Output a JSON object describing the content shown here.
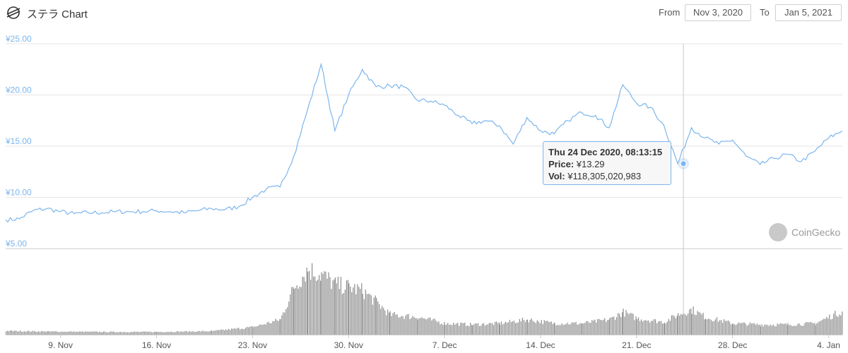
{
  "header": {
    "title": "ステラ Chart",
    "from_label": "From",
    "from_value": "Nov 3, 2020",
    "to_label": "To",
    "to_value": "Jan 5, 2021"
  },
  "tooltip": {
    "date": "Thu 24 Dec 2020, 08:13:15",
    "price_label": "Price:",
    "price_value": "¥13.29",
    "vol_label": "Vol:",
    "vol_value": "¥118,305,020,983"
  },
  "credit": "CoinGecko",
  "colors": {
    "line": "#7cb5ec",
    "volume": "#8c8c8c",
    "grid": "#e6e6e6",
    "axis_text": "#7cb5ec"
  },
  "chart_data": {
    "type": "line",
    "title": "ステラ Chart",
    "y_ticks": [
      "¥25.00",
      "¥20.00",
      "¥15.00",
      "¥10.00",
      "¥5.00"
    ],
    "y_tick_values": [
      25,
      20,
      15,
      10,
      5
    ],
    "ylim": [
      5,
      25
    ],
    "x_ticks": [
      "9. Nov",
      "16. Nov",
      "23. Nov",
      "30. Nov",
      "7. Dec",
      "14. Dec",
      "21. Dec",
      "28. Dec",
      "4. Jan"
    ],
    "x_tick_dates": [
      "2020-11-09",
      "2020-11-16",
      "2020-11-23",
      "2020-11-30",
      "2020-12-07",
      "2020-12-14",
      "2020-12-21",
      "2020-12-28",
      "2021-01-04"
    ],
    "xlim": [
      "2020-11-05",
      "2021-01-05"
    ],
    "series": [
      {
        "values": [
          [
            "2020-11-05",
            7.8
          ],
          [
            "2020-11-06",
            7.9
          ],
          [
            "2020-11-07",
            8.7
          ],
          [
            "2020-11-08",
            8.9
          ],
          [
            "2020-11-09",
            8.6
          ],
          [
            "2020-11-10",
            8.4
          ],
          [
            "2020-11-11",
            8.5
          ],
          [
            "2020-11-12",
            8.5
          ],
          [
            "2020-11-13",
            8.6
          ],
          [
            "2020-11-14",
            8.6
          ],
          [
            "2020-11-15",
            8.6
          ],
          [
            "2020-11-16",
            8.7
          ],
          [
            "2020-11-17",
            8.6
          ],
          [
            "2020-11-18",
            8.5
          ],
          [
            "2020-11-19",
            8.7
          ],
          [
            "2020-11-20",
            8.9
          ],
          [
            "2020-11-21",
            8.8
          ],
          [
            "2020-11-22",
            9.1
          ],
          [
            "2020-11-23",
            10.0
          ],
          [
            "2020-11-24",
            10.8
          ],
          [
            "2020-11-25",
            11.0
          ],
          [
            "2020-11-26",
            14.0
          ],
          [
            "2020-11-27",
            18.5
          ],
          [
            "2020-11-28",
            23.0
          ],
          [
            "2020-11-29",
            16.5
          ],
          [
            "2020-11-30",
            20.0
          ],
          [
            "2020-12-01",
            22.5
          ],
          [
            "2020-12-02",
            20.8
          ],
          [
            "2020-12-03",
            20.9
          ],
          [
            "2020-12-04",
            20.8
          ],
          [
            "2020-12-05",
            19.5
          ],
          [
            "2020-12-06",
            19.4
          ],
          [
            "2020-12-07",
            19.0
          ],
          [
            "2020-12-08",
            18.0
          ],
          [
            "2020-12-09",
            17.2
          ],
          [
            "2020-12-10",
            17.5
          ],
          [
            "2020-12-11",
            17.0
          ],
          [
            "2020-12-12",
            15.2
          ],
          [
            "2020-12-13",
            17.8
          ],
          [
            "2020-12-14",
            16.5
          ],
          [
            "2020-12-15",
            16.2
          ],
          [
            "2020-12-16",
            17.5
          ],
          [
            "2020-12-17",
            18.3
          ],
          [
            "2020-12-18",
            18.0
          ],
          [
            "2020-12-19",
            16.8
          ],
          [
            "2020-12-20",
            21.0
          ],
          [
            "2020-12-21",
            19.2
          ],
          [
            "2020-12-22",
            18.8
          ],
          [
            "2020-12-23",
            17.0
          ],
          [
            "2020-12-24",
            13.29
          ],
          [
            "2020-12-25",
            16.8
          ],
          [
            "2020-12-26",
            15.8
          ],
          [
            "2020-12-27",
            15.2
          ],
          [
            "2020-12-28",
            15.6
          ],
          [
            "2020-12-29",
            14.0
          ],
          [
            "2020-12-30",
            13.2
          ],
          [
            "2020-12-31",
            13.8
          ],
          [
            "2021-01-01",
            14.2
          ],
          [
            "2021-01-02",
            13.5
          ],
          [
            "2021-01-03",
            14.5
          ],
          [
            "2021-01-04",
            15.8
          ],
          [
            "2021-01-05",
            16.5
          ]
        ]
      }
    ],
    "volume_series": {
      "values": [
        [
          "2020-11-05",
          0.3
        ],
        [
          "2020-11-08",
          0.25
        ],
        [
          "2020-11-12",
          0.22
        ],
        [
          "2020-11-16",
          0.22
        ],
        [
          "2020-11-20",
          0.28
        ],
        [
          "2020-11-23",
          0.6
        ],
        [
          "2020-11-25",
          1.2
        ],
        [
          "2020-11-26",
          3.8
        ],
        [
          "2020-11-27",
          5.2
        ],
        [
          "2020-11-28",
          4.8
        ],
        [
          "2020-11-29",
          4.0
        ],
        [
          "2020-11-30",
          3.8
        ],
        [
          "2020-12-01",
          3.5
        ],
        [
          "2020-12-02",
          2.6
        ],
        [
          "2020-12-03",
          1.6
        ],
        [
          "2020-12-05",
          1.4
        ],
        [
          "2020-12-07",
          0.9
        ],
        [
          "2020-12-09",
          0.8
        ],
        [
          "2020-12-11",
          0.9
        ],
        [
          "2020-12-13",
          1.2
        ],
        [
          "2020-12-15",
          0.9
        ],
        [
          "2020-12-17",
          0.9
        ],
        [
          "2020-12-19",
          1.2
        ],
        [
          "2020-12-20",
          1.8
        ],
        [
          "2020-12-21",
          1.3
        ],
        [
          "2020-12-23",
          1.0
        ],
        [
          "2020-12-24",
          1.6
        ],
        [
          "2020-12-25",
          2.0
        ],
        [
          "2020-12-26",
          1.4
        ],
        [
          "2020-12-28",
          0.9
        ],
        [
          "2020-12-30",
          0.8
        ],
        [
          "2021-01-01",
          0.8
        ],
        [
          "2021-01-03",
          0.9
        ],
        [
          "2021-01-05",
          1.9
        ]
      ]
    },
    "crosshair_date": "2020-12-24",
    "grid": true
  }
}
